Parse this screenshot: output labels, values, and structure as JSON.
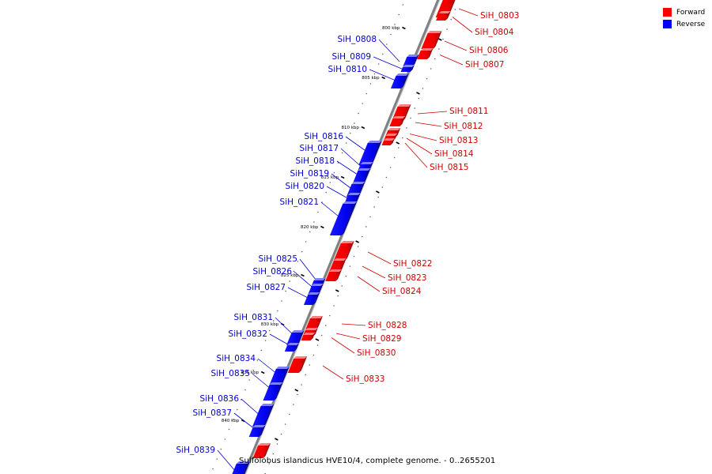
{
  "legend": {
    "forward": {
      "label": "Forward",
      "color": "#ff0000"
    },
    "reverse": {
      "label": "Reverse",
      "color": "#0000ff"
    }
  },
  "caption": "Sulfolobus islandicus HVE10/4, complete genome. - 0..2655201",
  "ticks": [
    "800 kbp",
    "805 kbp",
    "810 kbp",
    "815 kbp",
    "820 kbp",
    "825 kbp",
    "830 kbp",
    "835 kbp",
    "840 kbp"
  ],
  "genes": [
    {
      "id": "SiH_0803",
      "strand": "forward"
    },
    {
      "id": "SiH_0804",
      "strand": "forward"
    },
    {
      "id": "SiH_0806",
      "strand": "forward"
    },
    {
      "id": "SiH_0807",
      "strand": "forward"
    },
    {
      "id": "SiH_0808",
      "strand": "reverse"
    },
    {
      "id": "SiH_0809",
      "strand": "reverse"
    },
    {
      "id": "SiH_0810",
      "strand": "reverse"
    },
    {
      "id": "SiH_0811",
      "strand": "forward"
    },
    {
      "id": "SiH_0812",
      "strand": "forward"
    },
    {
      "id": "SiH_0813",
      "strand": "forward"
    },
    {
      "id": "SiH_0814",
      "strand": "forward"
    },
    {
      "id": "SiH_0815",
      "strand": "forward"
    },
    {
      "id": "SiH_0816",
      "strand": "reverse"
    },
    {
      "id": "SiH_0817",
      "strand": "reverse"
    },
    {
      "id": "SiH_0818",
      "strand": "reverse"
    },
    {
      "id": "SiH_0819",
      "strand": "reverse"
    },
    {
      "id": "SiH_0820",
      "strand": "reverse"
    },
    {
      "id": "SiH_0821",
      "strand": "reverse"
    },
    {
      "id": "SiH_0822",
      "strand": "forward"
    },
    {
      "id": "SiH_0823",
      "strand": "forward"
    },
    {
      "id": "SiH_0824",
      "strand": "forward"
    },
    {
      "id": "SiH_0825",
      "strand": "reverse"
    },
    {
      "id": "SiH_0826",
      "strand": "reverse"
    },
    {
      "id": "SiH_0827",
      "strand": "reverse"
    },
    {
      "id": "SiH_0828",
      "strand": "forward"
    },
    {
      "id": "SiH_0829",
      "strand": "forward"
    },
    {
      "id": "SiH_0830",
      "strand": "forward"
    },
    {
      "id": "SiH_0831",
      "strand": "reverse"
    },
    {
      "id": "SiH_0832",
      "strand": "reverse"
    },
    {
      "id": "SiH_0833",
      "strand": "forward"
    },
    {
      "id": "SiH_0834",
      "strand": "reverse"
    },
    {
      "id": "SiH_0835",
      "strand": "reverse"
    },
    {
      "id": "SiH_0836",
      "strand": "reverse"
    },
    {
      "id": "SiH_0837",
      "strand": "reverse"
    },
    {
      "id": "SiH_0839",
      "strand": "reverse"
    }
  ]
}
